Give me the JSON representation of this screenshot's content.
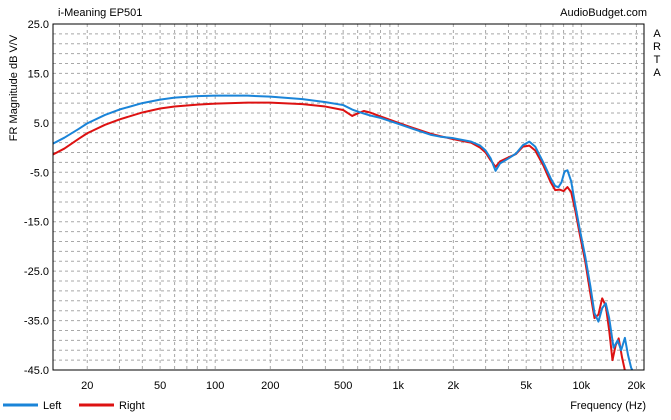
{
  "header": {
    "title": "i-Meaning EP501",
    "site": "AudioBudget.com",
    "side_letters": [
      "A",
      "R",
      "T",
      "A"
    ]
  },
  "legend": {
    "items": [
      {
        "label": "Left",
        "color": "#1a84d8"
      },
      {
        "label": "Right",
        "color": "#dd1111"
      }
    ]
  },
  "colors": {
    "left": "#1a84d8",
    "right": "#dd1111",
    "grid": "#a8a8a8",
    "axis": "#000000"
  },
  "chart_data": {
    "type": "line",
    "xlabel": "Frequency (Hz)",
    "ylabel": "FR Magnitude dB V/V",
    "xscale": "log",
    "xlim": [
      13,
      22000
    ],
    "ylim": [
      -45,
      25
    ],
    "x_tick_labels": [
      {
        "v": 20,
        "t": "20"
      },
      {
        "v": 50,
        "t": "50"
      },
      {
        "v": 100,
        "t": "100"
      },
      {
        "v": 200,
        "t": "200"
      },
      {
        "v": 500,
        "t": "500"
      },
      {
        "v": 1000,
        "t": "1k"
      },
      {
        "v": 2000,
        "t": "2k"
      },
      {
        "v": 5000,
        "t": "5k"
      },
      {
        "v": 10000,
        "t": "10k"
      },
      {
        "v": 20000,
        "t": "20k"
      }
    ],
    "y_ticks": [
      25.0,
      15.0,
      5.0,
      -5.0,
      -15.0,
      -25.0,
      -35.0,
      -45.0
    ],
    "y_tick_labels": [
      "25.0",
      "15.0",
      "5.0",
      "-5.0",
      "-15.0",
      "-25.0",
      "-35.0",
      "-45.0"
    ],
    "grid": true,
    "legend_position": "bottom-left",
    "series": [
      {
        "name": "Left",
        "color": "#1a84d8",
        "points": [
          [
            13,
            0.8
          ],
          [
            15,
            2.0
          ],
          [
            18,
            3.8
          ],
          [
            20,
            4.9
          ],
          [
            25,
            6.6
          ],
          [
            30,
            7.7
          ],
          [
            40,
            9.0
          ],
          [
            50,
            9.7
          ],
          [
            60,
            10.1
          ],
          [
            80,
            10.4
          ],
          [
            100,
            10.5
          ],
          [
            150,
            10.5
          ],
          [
            200,
            10.3
          ],
          [
            300,
            9.8
          ],
          [
            400,
            9.2
          ],
          [
            500,
            8.6
          ],
          [
            560,
            7.7
          ],
          [
            620,
            7.1
          ],
          [
            700,
            6.5
          ],
          [
            800,
            6.0
          ],
          [
            1000,
            4.8
          ],
          [
            1200,
            3.8
          ],
          [
            1500,
            2.6
          ],
          [
            1700,
            2.2
          ],
          [
            2000,
            1.9
          ],
          [
            2500,
            1.2
          ],
          [
            2800,
            0.4
          ],
          [
            3000,
            -0.6
          ],
          [
            3200,
            -2.2
          ],
          [
            3400,
            -4.7
          ],
          [
            3600,
            -3.2
          ],
          [
            4000,
            -2.2
          ],
          [
            4400,
            -1.2
          ],
          [
            4800,
            0.5
          ],
          [
            5200,
            1.2
          ],
          [
            5600,
            0.2
          ],
          [
            6200,
            -3.0
          ],
          [
            6800,
            -6.2
          ],
          [
            7200,
            -7.8
          ],
          [
            7500,
            -8.0
          ],
          [
            7800,
            -7.0
          ],
          [
            8100,
            -4.8
          ],
          [
            8400,
            -4.6
          ],
          [
            8800,
            -6.8
          ],
          [
            9200,
            -11.0
          ],
          [
            9800,
            -16.5
          ],
          [
            10500,
            -22.0
          ],
          [
            11200,
            -28.0
          ],
          [
            11800,
            -33.5
          ],
          [
            12400,
            -35.2
          ],
          [
            13000,
            -32.5
          ],
          [
            13600,
            -31.5
          ],
          [
            14200,
            -34.5
          ],
          [
            15000,
            -40.5
          ],
          [
            15800,
            -39.0
          ],
          [
            16500,
            -41.0
          ],
          [
            17300,
            -38.5
          ],
          [
            18000,
            -42.0
          ],
          [
            18700,
            -44.5
          ],
          [
            19500,
            -46.0
          ]
        ]
      },
      {
        "name": "Right",
        "color": "#dd1111",
        "points": [
          [
            13,
            -1.4
          ],
          [
            15,
            -0.2
          ],
          [
            18,
            1.8
          ],
          [
            20,
            2.9
          ],
          [
            25,
            4.6
          ],
          [
            30,
            5.7
          ],
          [
            40,
            7.1
          ],
          [
            50,
            7.9
          ],
          [
            60,
            8.3
          ],
          [
            80,
            8.7
          ],
          [
            100,
            8.9
          ],
          [
            150,
            9.1
          ],
          [
            200,
            9.1
          ],
          [
            300,
            8.8
          ],
          [
            400,
            8.3
          ],
          [
            500,
            7.6
          ],
          [
            560,
            6.4
          ],
          [
            600,
            6.9
          ],
          [
            650,
            7.4
          ],
          [
            700,
            7.1
          ],
          [
            800,
            6.3
          ],
          [
            1000,
            5.0
          ],
          [
            1200,
            4.0
          ],
          [
            1500,
            2.8
          ],
          [
            1700,
            2.3
          ],
          [
            2000,
            1.7
          ],
          [
            2500,
            1.0
          ],
          [
            2800,
            0.0
          ],
          [
            3000,
            -1.0
          ],
          [
            3200,
            -2.6
          ],
          [
            3400,
            -3.9
          ],
          [
            3600,
            -2.8
          ],
          [
            4000,
            -2.0
          ],
          [
            4400,
            -1.3
          ],
          [
            4800,
            0.2
          ],
          [
            5200,
            0.4
          ],
          [
            5600,
            -0.6
          ],
          [
            6200,
            -3.6
          ],
          [
            6800,
            -7.0
          ],
          [
            7200,
            -8.6
          ],
          [
            7600,
            -8.5
          ],
          [
            8000,
            -8.8
          ],
          [
            8400,
            -8.0
          ],
          [
            8800,
            -9.0
          ],
          [
            9300,
            -13.0
          ],
          [
            9800,
            -17.5
          ],
          [
            10500,
            -23.0
          ],
          [
            11200,
            -29.5
          ],
          [
            11800,
            -34.5
          ],
          [
            12400,
            -33.8
          ],
          [
            13000,
            -30.5
          ],
          [
            13600,
            -32.0
          ],
          [
            14200,
            -37.0
          ],
          [
            14800,
            -43.0
          ],
          [
            15400,
            -40.0
          ],
          [
            16000,
            -38.6
          ],
          [
            16700,
            -42.5
          ],
          [
            17400,
            -45.5
          ]
        ]
      }
    ]
  }
}
